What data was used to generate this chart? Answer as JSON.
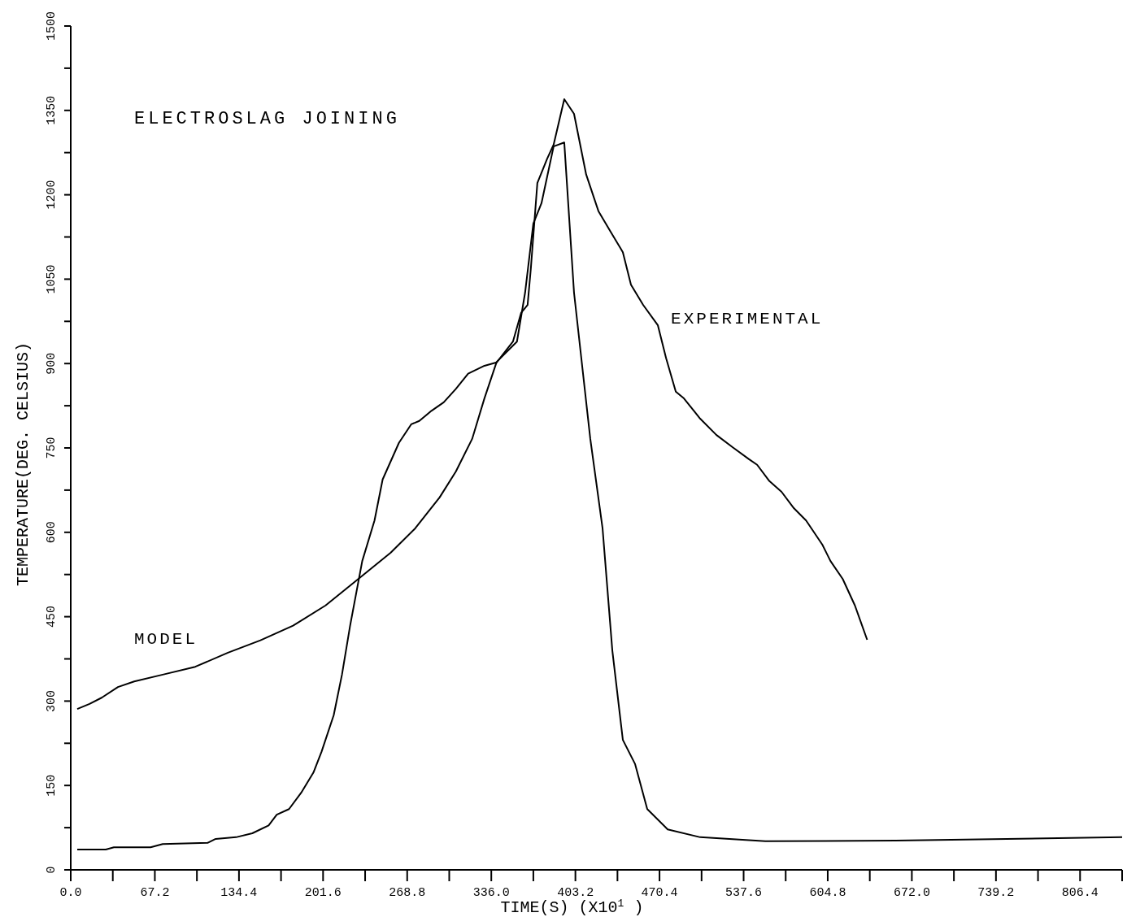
{
  "chart_data": {
    "type": "line",
    "title": "ELECTROSLAG JOINING",
    "xlabel": "TIME(S) (X10$^{1}$ )",
    "ylabel": "TEMPERATURE(DEG. CELSIUS)",
    "xlim": [
      0,
      840
    ],
    "ylim": [
      0,
      1500
    ],
    "xticks": [
      {
        "value": 0,
        "label": "0.0"
      },
      {
        "value": 33.6,
        "label": null
      },
      {
        "value": 67.2,
        "label": "67.2"
      },
      {
        "value": 100.8,
        "label": null
      },
      {
        "value": 134.4,
        "label": "134.4"
      },
      {
        "value": 168,
        "label": null
      },
      {
        "value": 201.6,
        "label": "201.6"
      },
      {
        "value": 235.2,
        "label": null
      },
      {
        "value": 268.8,
        "label": "268.8"
      },
      {
        "value": 302.4,
        "label": null
      },
      {
        "value": 336,
        "label": "336.0"
      },
      {
        "value": 369.6,
        "label": null
      },
      {
        "value": 403.2,
        "label": "403.2"
      },
      {
        "value": 436.8,
        "label": null
      },
      {
        "value": 470.4,
        "label": "470.4"
      },
      {
        "value": 504,
        "label": null
      },
      {
        "value": 537.6,
        "label": "537.6"
      },
      {
        "value": 571.2,
        "label": null
      },
      {
        "value": 604.8,
        "label": "604.8"
      },
      {
        "value": 638.4,
        "label": null
      },
      {
        "value": 672,
        "label": "672.0"
      },
      {
        "value": 705.6,
        "label": null
      },
      {
        "value": 739.2,
        "label": "739.2"
      },
      {
        "value": 772.8,
        "label": null
      },
      {
        "value": 806.4,
        "label": "806.4"
      },
      {
        "value": 840,
        "label": null
      }
    ],
    "yticks": [
      0,
      {
        "value": 75,
        "label": null
      },
      150,
      {
        "value": 225,
        "label": null
      },
      300,
      {
        "value": 375,
        "label": null
      },
      450,
      {
        "value": 525,
        "label": null
      },
      600,
      {
        "value": 675,
        "label": null
      },
      750,
      {
        "value": 825,
        "label": null
      },
      900,
      {
        "value": 975,
        "label": null
      },
      1050,
      {
        "value": 1125,
        "label": null
      },
      1200,
      {
        "value": 1275,
        "label": null
      },
      1350,
      {
        "value": 1425,
        "label": null
      },
      1500
    ],
    "grid": false,
    "marker": "none",
    "line_style": "solid",
    "series": [
      {
        "name": "MODEL",
        "color": "#000000",
        "x": [
          5.2,
          15,
          24.7,
          37.7,
          50.7,
          73.5,
          99.5,
          125.6,
          151.6,
          177.6,
          203.6,
          229.7,
          255.7,
          275.2,
          294.7,
          307.7,
          320.7,
          330.5,
          340.3,
          356.5,
          363,
          369.6,
          376.1,
          385.8,
          394.3,
          402.1,
          415.1,
          424.9,
          432.7,
          441.1,
          450.9,
          460.6,
          476.9,
          502.9,
          555,
          659.1,
          840
        ],
        "values": [
          286,
          295,
          306,
          325,
          335,
          347,
          361,
          386,
          408,
          434,
          470,
          517,
          564,
          607,
          662,
          708,
          766,
          838,
          903,
          939,
          1026,
          1149,
          1185,
          1286,
          1293,
          1026,
          766,
          607,
          390,
          231,
          188,
          108,
          72,
          58,
          51,
          52,
          58
        ]
      },
      {
        "name": "EXPERIMENTAL",
        "color": "#000000",
        "x": [
          5.2,
          28,
          34.5,
          63.8,
          73.5,
          109.3,
          115.8,
          132.1,
          145.1,
          158.1,
          164.6,
          174.4,
          184.1,
          193.9,
          200.4,
          210.1,
          216.7,
          223.2,
          232.9,
          242.7,
          249.2,
          262.2,
          272,
          278.5,
          288.2,
          298,
          307.7,
          317.5,
          330.5,
          340.3,
          353.3,
          359.8,
          365,
          367.6,
          372.8,
          380.6,
          385.8,
          394.3,
          402.1,
          411.8,
          421.6,
          431.4,
          441.1,
          447.6,
          457.4,
          469.1,
          475.6,
          483.4,
          489.9,
          502.9,
          515.9,
          528.9,
          541.9,
          548.4,
          558.2,
          567.9,
          577.7,
          587.5,
          600.5,
          607,
          616.8,
          626.5,
          636.3
        ],
        "values": [
          36,
          36,
          40,
          40,
          46,
          48,
          55,
          58,
          65,
          79,
          98,
          108,
          137,
          173,
          210,
          275,
          347,
          434,
          549,
          621,
          694,
          759,
          792,
          798,
          816,
          831,
          855,
          882,
          896,
          902,
          939,
          990,
          1004,
          1069,
          1221,
          1264,
          1289,
          1370,
          1344,
          1236,
          1171,
          1134,
          1098,
          1040,
          1004,
          968,
          910,
          850,
          838,
          802,
          773,
          751,
          730,
          720,
          691,
          672,
          643,
          621,
          578,
          549,
          517,
          470,
          409
        ]
      }
    ]
  }
}
